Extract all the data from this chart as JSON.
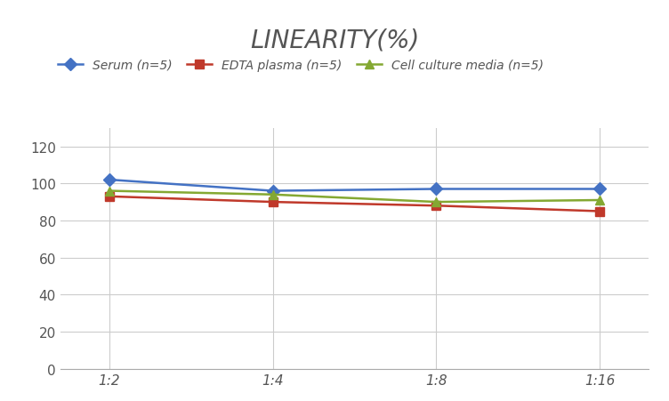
{
  "title": "LINEARITY(%)",
  "x_labels": [
    "1:2",
    "1:4",
    "1:8",
    "1:16"
  ],
  "x_positions": [
    0,
    1,
    2,
    3
  ],
  "series": [
    {
      "label": "Serum (n=5)",
      "values": [
        102,
        96,
        97,
        97
      ],
      "color": "#4472C4",
      "marker": "D",
      "linewidth": 1.8
    },
    {
      "label": "EDTA plasma (n=5)",
      "values": [
        93,
        90,
        88,
        85
      ],
      "color": "#C0392B",
      "marker": "s",
      "linewidth": 1.8
    },
    {
      "label": "Cell culture media (n=5)",
      "values": [
        96,
        94,
        90,
        91
      ],
      "color": "#84A832",
      "marker": "^",
      "linewidth": 1.8
    }
  ],
  "ylim": [
    0,
    130
  ],
  "yticks": [
    0,
    20,
    40,
    60,
    80,
    100,
    120
  ],
  "grid_color": "#CCCCCC",
  "background_color": "#FFFFFF",
  "title_fontsize": 20,
  "title_color": "#555555",
  "legend_fontsize": 10,
  "tick_fontsize": 11
}
